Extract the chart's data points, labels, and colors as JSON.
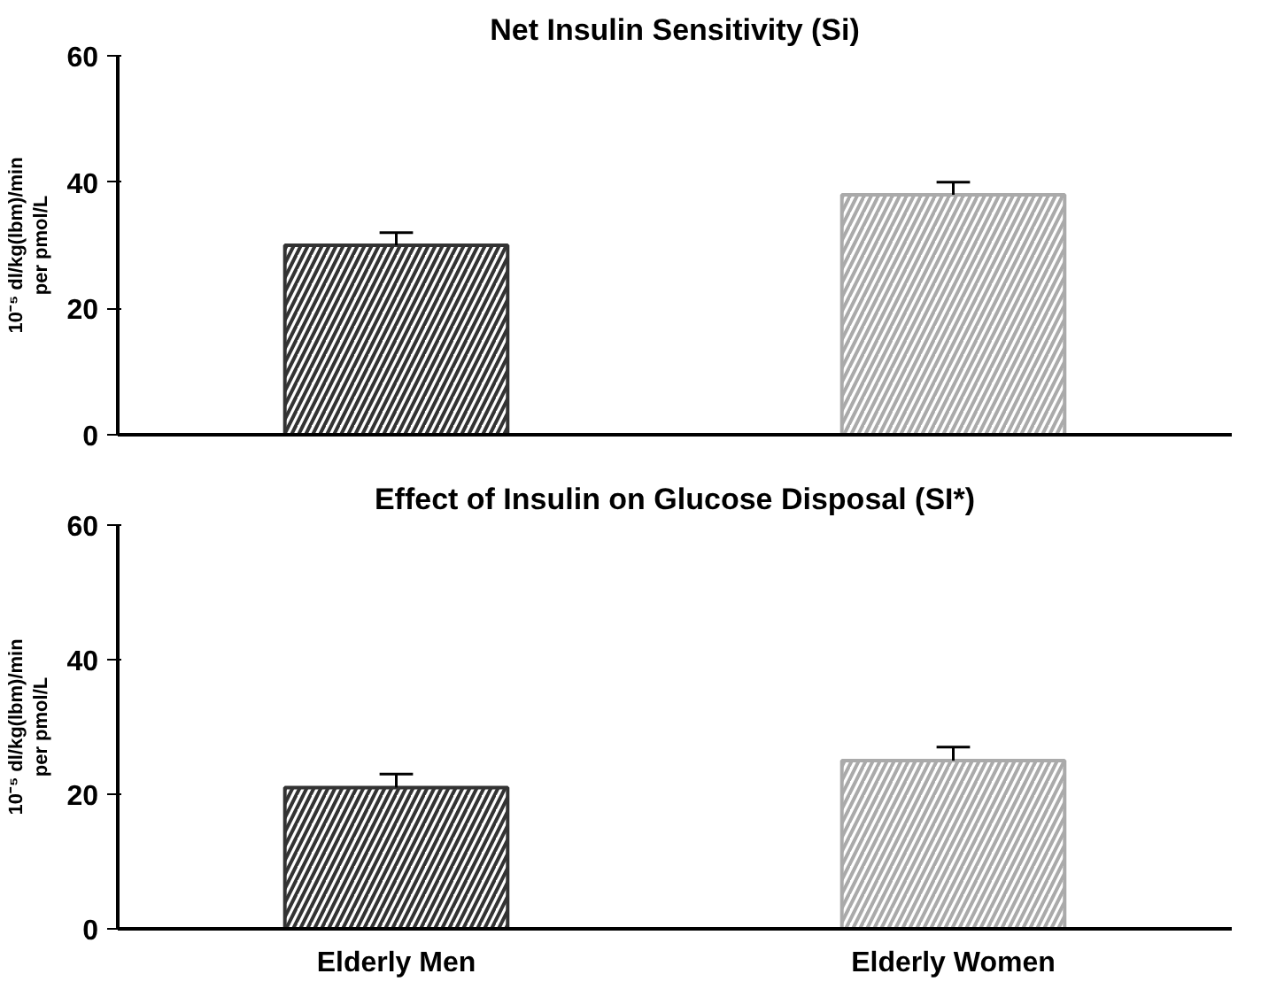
{
  "chart_data": [
    {
      "type": "bar",
      "title": "Net Insulin Sensitivity (Si)",
      "ylabel": "10⁻⁵ dl/kg(lbm)/min\nper pmol/L",
      "categories": [
        null,
        null
      ],
      "values": [
        30,
        38
      ],
      "errors": [
        [
          30,
          32
        ],
        [
          38,
          40
        ]
      ],
      "colors": [
        "#333333",
        "#aaaaaa"
      ],
      "ylim": [
        0,
        60
      ],
      "yticks": [
        0,
        20,
        40,
        60
      ],
      "tick_labels": "y",
      "grid": false
    },
    {
      "type": "bar",
      "title": "Effect of Insulin on Glucose Disposal (SI*)",
      "ylabel": "10⁻⁵ dl/kg(lbm)/min\nper pmol/L",
      "categories": [
        "Elderly Men",
        "Elderly Women"
      ],
      "values": [
        21,
        25
      ],
      "errors": [
        [
          21,
          23
        ],
        [
          25,
          27
        ]
      ],
      "colors": [
        "#333333",
        "#aaaaaa"
      ],
      "ylim": [
        0,
        60
      ],
      "yticks": [
        0,
        20,
        40,
        60
      ],
      "grid": false
    }
  ]
}
